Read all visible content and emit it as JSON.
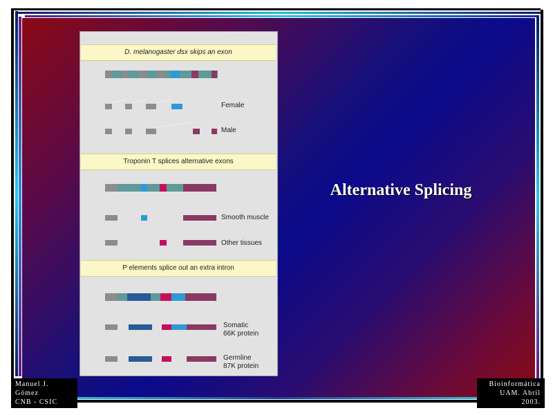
{
  "slide": {
    "title": "Alternative Splicing",
    "footer_left": [
      "Manuel J. Gómez",
      "CNB - CSIC"
    ],
    "footer_right": [
      "Bioinformática",
      "UAM. Abril 2003."
    ]
  },
  "figure": {
    "panels": [
      {
        "title": "D. melanogaster dsx skips an exon",
        "labels": [
          "Female",
          "Male"
        ]
      },
      {
        "title": "Troponin T splices alternative exons",
        "labels": [
          "Smooth muscle",
          "Other tissues"
        ]
      },
      {
        "title": "P elements splice out an extra intron",
        "labels": [
          "Somatic\n66K protein",
          "Germline\n87K protein"
        ]
      }
    ]
  },
  "colors": {
    "grey": "#8c8c8c",
    "teal": "#5f9999",
    "blue": "#2c9ad6",
    "maroon": "#8a3a62",
    "pink": "#c4105a",
    "navy": "#2a5a98",
    "panel_bg": "#e2e2e2",
    "title_bg": "#fbf7c6"
  }
}
